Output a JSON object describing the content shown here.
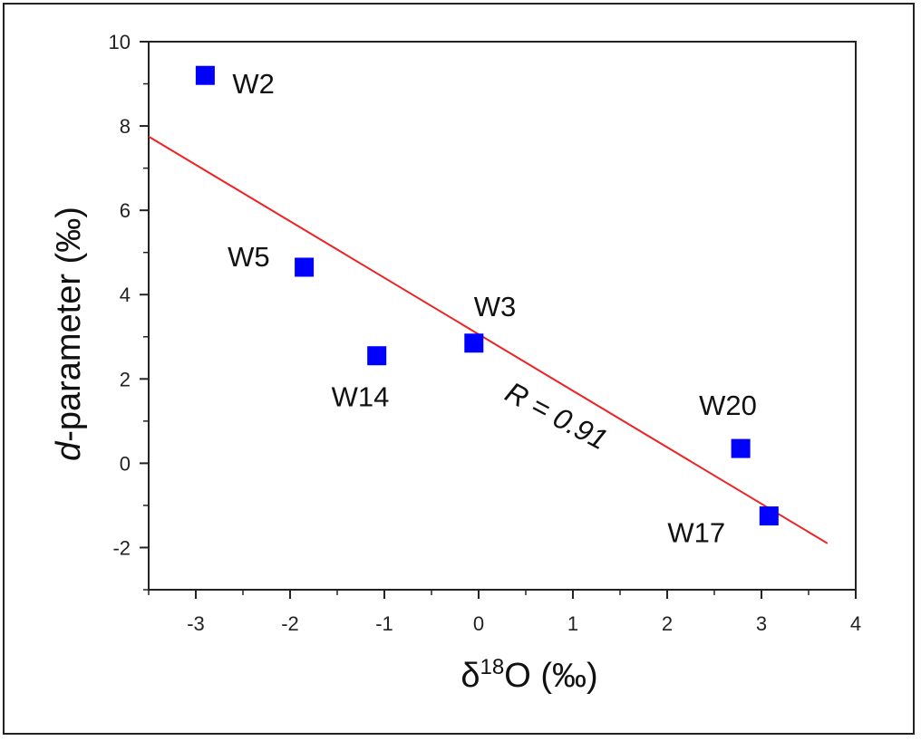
{
  "chart_data": {
    "type": "scatter",
    "xlabel_prefix": "δ",
    "xlabel_sup": "18",
    "xlabel_rest": "O (‰)",
    "ylabel_italic": "d",
    "ylabel_rest": "-parameter (‰)",
    "xlim": [
      -3.5,
      4
    ],
    "ylim": [
      -3,
      10
    ],
    "x_ticks": [
      -3,
      -2,
      -1,
      0,
      1,
      2,
      3,
      4
    ],
    "y_ticks": [
      -2,
      0,
      2,
      4,
      6,
      8,
      10
    ],
    "grid": false,
    "marker_color": "#0000ff",
    "fit_color": "#ee2222",
    "points": [
      {
        "label": "W2",
        "x": -2.9,
        "y": 9.2
      },
      {
        "label": "W5",
        "x": -1.85,
        "y": 4.65
      },
      {
        "label": "W14",
        "x": -1.08,
        "y": 2.55
      },
      {
        "label": "W3",
        "x": -0.05,
        "y": 2.85
      },
      {
        "label": "W20",
        "x": 2.78,
        "y": 0.35
      },
      {
        "label": "W17",
        "x": 3.08,
        "y": -1.25
      }
    ],
    "fit_line": {
      "x": [
        -3.5,
        3.7
      ],
      "y": [
        7.75,
        -1.9
      ]
    },
    "annotation": "R = 0.91"
  }
}
